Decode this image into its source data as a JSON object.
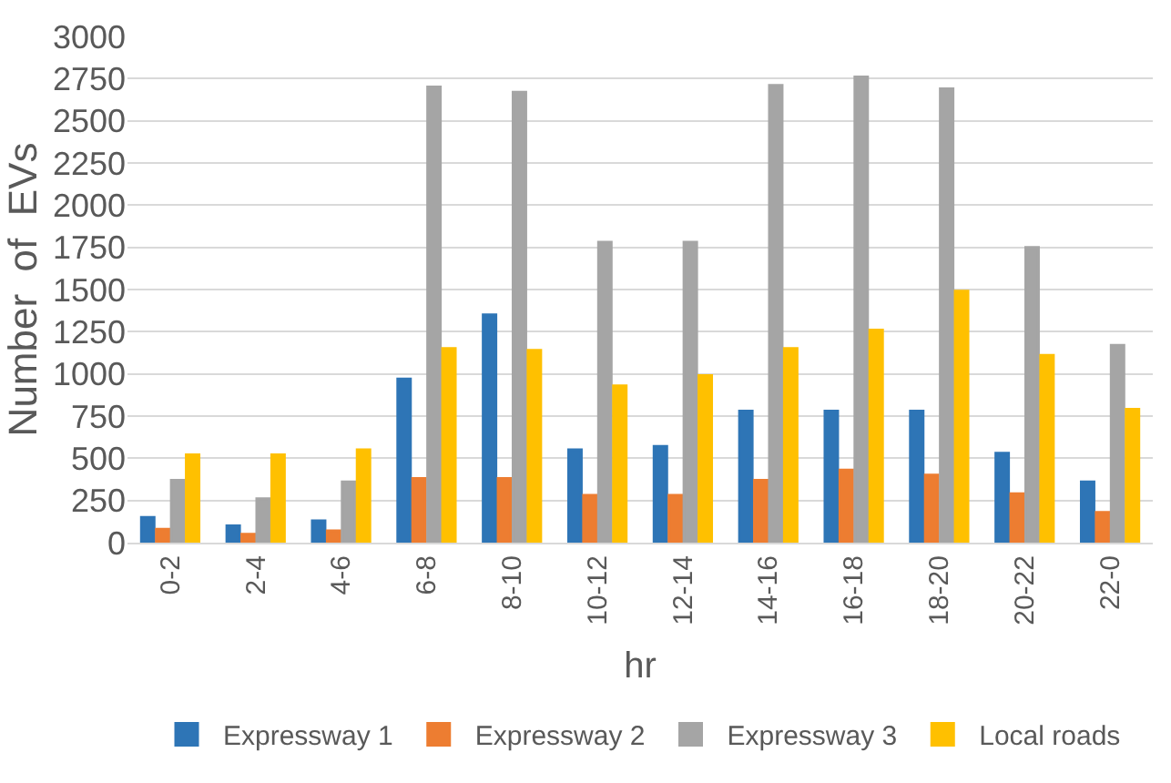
{
  "chart_data": {
    "type": "bar",
    "xlabel": "hr",
    "ylabel": "Number  of  EVs",
    "categories": [
      "0-2",
      "2-4",
      "4-6",
      "6-8",
      "8-10",
      "10-12",
      "12-14",
      "14-16",
      "16-18",
      "18-20",
      "20-22",
      "22-0"
    ],
    "series": [
      {
        "name": "Expressway 1",
        "color": "#2e75b6",
        "values": [
          150,
          100,
          130,
          970,
          1350,
          550,
          570,
          780,
          780,
          780,
          530,
          360
        ]
      },
      {
        "name": "Expressway 2",
        "color": "#ed7d31",
        "values": [
          80,
          50,
          70,
          380,
          380,
          280,
          280,
          370,
          430,
          400,
          290,
          180
        ]
      },
      {
        "name": "Expressway 3",
        "color": "#a5a5a5",
        "values": [
          370,
          260,
          360,
          2700,
          2670,
          1780,
          1780,
          2710,
          2760,
          2690,
          1750,
          1170
        ]
      },
      {
        "name": "Local roads",
        "color": "#ffc000",
        "values": [
          520,
          520,
          550,
          1150,
          1140,
          930,
          990,
          1150,
          1260,
          1490,
          1110,
          790
        ]
      }
    ],
    "ylim": [
      0,
      3000
    ],
    "yticks": [
      0,
      250,
      500,
      750,
      1000,
      1250,
      1500,
      1750,
      2000,
      2250,
      2500,
      2750,
      3000
    ],
    "grid": "y",
    "legend": "bottom"
  }
}
